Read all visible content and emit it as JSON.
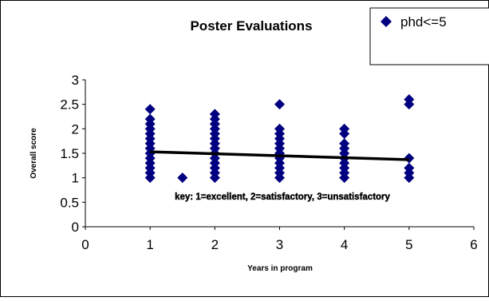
{
  "chart_data": {
    "type": "scatter",
    "title": "Poster Evaluations",
    "xlabel": "Years in program",
    "ylabel": "Overall score",
    "xlim": [
      0,
      6
    ],
    "ylim": [
      0,
      3
    ],
    "x_ticks": [
      "0",
      "1",
      "2",
      "3",
      "4",
      "5",
      "6"
    ],
    "y_ticks": [
      "0",
      "0.5",
      "1",
      "1.5",
      "2",
      "2.5",
      "3"
    ],
    "grid": false,
    "legend": {
      "position": "top-right",
      "entries": [
        "phd<=5"
      ]
    },
    "annotation": "key: 1=excellent, 2=satisfactory, 3=unsatisfactory",
    "series": [
      {
        "name": "phd<=5",
        "color": "#000080",
        "marker": "diamond",
        "points": [
          [
            1,
            1.0
          ],
          [
            1,
            1.1
          ],
          [
            1,
            1.2
          ],
          [
            1,
            1.3
          ],
          [
            1,
            1.4
          ],
          [
            1,
            1.5
          ],
          [
            1,
            1.6
          ],
          [
            1,
            1.7
          ],
          [
            1,
            1.8
          ],
          [
            1,
            1.9
          ],
          [
            1,
            2.0
          ],
          [
            1,
            2.1
          ],
          [
            1,
            2.2
          ],
          [
            1,
            2.4
          ],
          [
            1.5,
            1.0
          ],
          [
            2,
            1.0
          ],
          [
            2,
            1.1
          ],
          [
            2,
            1.2
          ],
          [
            2,
            1.3
          ],
          [
            2,
            1.4
          ],
          [
            2,
            1.5
          ],
          [
            2,
            1.6
          ],
          [
            2,
            1.7
          ],
          [
            2,
            1.8
          ],
          [
            2,
            1.9
          ],
          [
            2,
            2.0
          ],
          [
            2,
            2.1
          ],
          [
            2,
            2.2
          ],
          [
            2,
            2.3
          ],
          [
            3,
            1.0
          ],
          [
            3,
            1.1
          ],
          [
            3,
            1.2
          ],
          [
            3,
            1.3
          ],
          [
            3,
            1.4
          ],
          [
            3,
            1.5
          ],
          [
            3,
            1.6
          ],
          [
            3,
            1.7
          ],
          [
            3,
            1.8
          ],
          [
            3,
            1.9
          ],
          [
            3,
            2.0
          ],
          [
            3,
            2.5
          ],
          [
            4,
            1.0
          ],
          [
            4,
            1.1
          ],
          [
            4,
            1.2
          ],
          [
            4,
            1.3
          ],
          [
            4,
            1.4
          ],
          [
            4,
            1.5
          ],
          [
            4,
            1.6
          ],
          [
            4,
            1.7
          ],
          [
            4,
            1.9
          ],
          [
            4,
            2.0
          ],
          [
            5,
            1.0
          ],
          [
            5,
            1.1
          ],
          [
            5,
            1.2
          ],
          [
            5,
            1.4
          ],
          [
            5,
            2.5
          ],
          [
            5,
            2.6
          ]
        ]
      }
    ],
    "trendline": {
      "type": "linear",
      "color": "#000000",
      "points": [
        [
          1,
          1.53
        ],
        [
          5,
          1.37
        ]
      ]
    }
  }
}
